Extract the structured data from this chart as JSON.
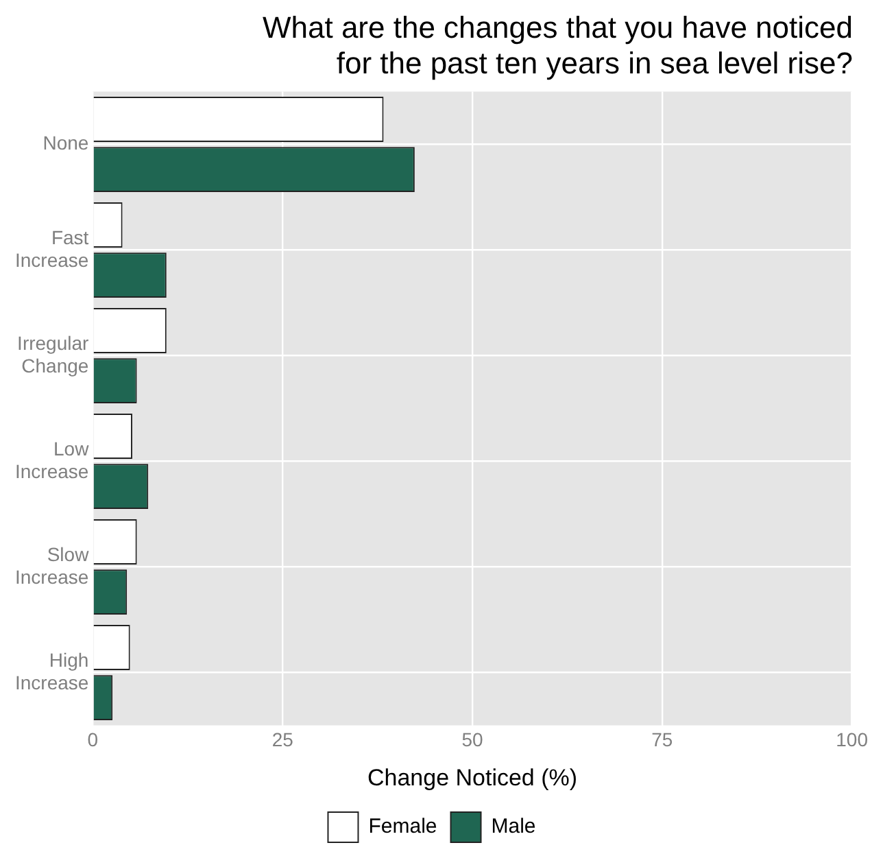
{
  "chart_data": {
    "type": "bar",
    "orientation": "horizontal",
    "title": "What are the changes that you have noticed\nfor the past ten years in sea level rise?",
    "xlabel": "Change Noticed (%)",
    "categories": [
      "None",
      "Fast Increase",
      "Irregular Change",
      "Low Increase",
      "Slow Increase",
      "High Increase"
    ],
    "series": [
      {
        "name": "Female",
        "color": "#ffffff",
        "values": [
          38.3,
          3.9,
          9.7,
          5.2,
          5.8,
          4.9
        ]
      },
      {
        "name": "Male",
        "color": "#1f6652",
        "values": [
          42.4,
          9.7,
          5.8,
          7.3,
          4.5,
          2.6
        ]
      }
    ],
    "xlim": [
      0,
      100
    ],
    "xticks": [
      0,
      25,
      50,
      75,
      100
    ],
    "grid": true,
    "legend": "bottom"
  }
}
